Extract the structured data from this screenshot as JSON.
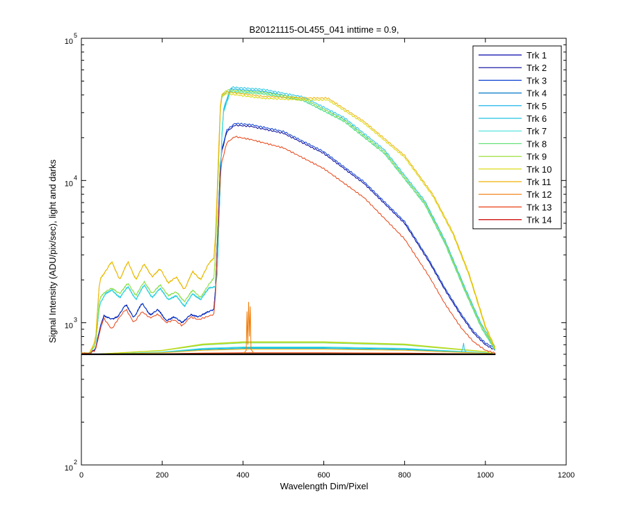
{
  "chart_data": {
    "type": "line",
    "title": "B20121115-OL455_041 inttime = 0.9,",
    "xlabel": "Wavelength Dim/Pixel",
    "ylabel": "Signal Intensity (ADU/pix/sec), light and darks",
    "xlim": [
      0,
      1200
    ],
    "ylim": [
      100,
      100000
    ],
    "yscale": "log",
    "xticks": [
      0,
      200,
      400,
      600,
      800,
      1000,
      1200
    ],
    "xtick_labels": [
      "0",
      "200",
      "400",
      "600",
      "800",
      "1000",
      "1200"
    ],
    "ytick_labels": [
      {
        "value": 100,
        "base": "10",
        "exp": "2"
      },
      {
        "value": 1000,
        "base": "10",
        "exp": "3"
      },
      {
        "value": 10000,
        "base": "10",
        "exp": "4"
      },
      {
        "value": 100000,
        "base": "10",
        "exp": "5"
      }
    ],
    "grid": false,
    "legend_position": "top-right",
    "series": [
      {
        "name": "Trk 1",
        "color": "#0000aa",
        "group": "dark",
        "dark_level": 602
      },
      {
        "name": "Trk 2",
        "color": "#000099",
        "group": "B",
        "dark_level": 604
      },
      {
        "name": "Trk 3",
        "color": "#0a3fd0",
        "group": "B",
        "dark_level": 606
      },
      {
        "name": "Trk 4",
        "color": "#0077c8",
        "group": "dark",
        "dark_level": 605
      },
      {
        "name": "Trk 5",
        "color": "#00aee6",
        "group": "C",
        "dark_level": 660
      },
      {
        "name": "Trk 6",
        "color": "#22c4e2",
        "group": "C",
        "dark_level": 668
      },
      {
        "name": "Trk 7",
        "color": "#44e0dc",
        "group": "C",
        "dark_level": 675
      },
      {
        "name": "Trk 8",
        "color": "#66e07a",
        "group": "D",
        "dark_level": 720
      },
      {
        "name": "Trk 9",
        "color": "#a0e040",
        "group": "D",
        "dark_level": 735
      },
      {
        "name": "Trk 10",
        "color": "#d8d800",
        "group": "A",
        "dark_level": 728
      },
      {
        "name": "Trk 11",
        "color": "#f0b000",
        "group": "A",
        "dark_level": 650
      },
      {
        "name": "Trk 12",
        "color": "#f07800",
        "group": "dark",
        "dark_level": 612
      },
      {
        "name": "Trk 13",
        "color": "#e84010",
        "group": "E",
        "dark_level": 615
      },
      {
        "name": "Trk 14",
        "color": "#cc0000",
        "group": "dark",
        "dark_level": 603
      }
    ],
    "profiles": {
      "B": [
        [
          0,
          610
        ],
        [
          20,
          610
        ],
        [
          35,
          650
        ],
        [
          45,
          900
        ],
        [
          55,
          1120
        ],
        [
          75,
          1060
        ],
        [
          90,
          1100
        ],
        [
          110,
          1350
        ],
        [
          130,
          1080
        ],
        [
          150,
          1380
        ],
        [
          170,
          1130
        ],
        [
          190,
          1240
        ],
        [
          210,
          1030
        ],
        [
          230,
          1100
        ],
        [
          250,
          1000
        ],
        [
          270,
          1140
        ],
        [
          290,
          1100
        ],
        [
          310,
          1180
        ],
        [
          330,
          1250
        ],
        [
          345,
          15000
        ],
        [
          360,
          22000
        ],
        [
          380,
          24500
        ],
        [
          420,
          24000
        ],
        [
          500,
          21500
        ],
        [
          600,
          15500
        ],
        [
          700,
          9500
        ],
        [
          800,
          5000
        ],
        [
          860,
          2700
        ],
        [
          900,
          1700
        ],
        [
          940,
          1120
        ],
        [
          970,
          850
        ],
        [
          1000,
          700
        ],
        [
          1025,
          640
        ]
      ],
      "C": [
        [
          0,
          610
        ],
        [
          20,
          610
        ],
        [
          35,
          700
        ],
        [
          45,
          1350
        ],
        [
          60,
          1600
        ],
        [
          75,
          1700
        ],
        [
          95,
          1500
        ],
        [
          115,
          1800
        ],
        [
          135,
          1450
        ],
        [
          155,
          1850
        ],
        [
          175,
          1500
        ],
        [
          195,
          1750
        ],
        [
          215,
          1450
        ],
        [
          235,
          1550
        ],
        [
          255,
          1300
        ],
        [
          275,
          1600
        ],
        [
          295,
          1450
        ],
        [
          315,
          1750
        ],
        [
          335,
          1800
        ],
        [
          350,
          30000
        ],
        [
          370,
          44000
        ],
        [
          450,
          42500
        ],
        [
          550,
          37500
        ],
        [
          650,
          27000
        ],
        [
          750,
          16000
        ],
        [
          850,
          7000
        ],
        [
          900,
          3700
        ],
        [
          950,
          1700
        ],
        [
          990,
          950
        ],
        [
          1025,
          650
        ]
      ],
      "D": [
        [
          0,
          610
        ],
        [
          20,
          610
        ],
        [
          35,
          700
        ],
        [
          45,
          1500
        ],
        [
          60,
          1650
        ],
        [
          75,
          1750
        ],
        [
          95,
          1600
        ],
        [
          115,
          1900
        ],
        [
          135,
          1550
        ],
        [
          155,
          1950
        ],
        [
          175,
          1600
        ],
        [
          195,
          1850
        ],
        [
          215,
          1550
        ],
        [
          235,
          1650
        ],
        [
          255,
          1400
        ],
        [
          275,
          1700
        ],
        [
          295,
          1500
        ],
        [
          315,
          1850
        ],
        [
          330,
          2100
        ],
        [
          345,
          38000
        ],
        [
          360,
          42000
        ],
        [
          450,
          40500
        ],
        [
          550,
          36500
        ],
        [
          650,
          26000
        ],
        [
          750,
          15500
        ],
        [
          850,
          6800
        ],
        [
          900,
          3600
        ],
        [
          950,
          1650
        ],
        [
          990,
          920
        ],
        [
          1025,
          640
        ]
      ],
      "A": [
        [
          0,
          610
        ],
        [
          20,
          610
        ],
        [
          35,
          750
        ],
        [
          45,
          2000
        ],
        [
          60,
          2300
        ],
        [
          75,
          2700
        ],
        [
          95,
          2000
        ],
        [
          115,
          2700
        ],
        [
          135,
          2000
        ],
        [
          155,
          2600
        ],
        [
          175,
          2100
        ],
        [
          195,
          2400
        ],
        [
          215,
          1900
        ],
        [
          235,
          2100
        ],
        [
          255,
          1700
        ],
        [
          275,
          2300
        ],
        [
          295,
          2000
        ],
        [
          315,
          2600
        ],
        [
          330,
          2900
        ],
        [
          345,
          40000
        ],
        [
          360,
          42000
        ],
        [
          450,
          39000
        ],
        [
          550,
          38000
        ],
        [
          610,
          38000
        ],
        [
          700,
          26000
        ],
        [
          800,
          15000
        ],
        [
          870,
          8000
        ],
        [
          920,
          4300
        ],
        [
          960,
          2200
        ],
        [
          1000,
          950
        ],
        [
          1025,
          660
        ]
      ],
      "E": [
        [
          0,
          610
        ],
        [
          20,
          610
        ],
        [
          35,
          640
        ],
        [
          45,
          850
        ],
        [
          55,
          1080
        ],
        [
          75,
          900
        ],
        [
          90,
          1050
        ],
        [
          110,
          1250
        ],
        [
          130,
          1000
        ],
        [
          150,
          1200
        ],
        [
          170,
          1080
        ],
        [
          190,
          1150
        ],
        [
          210,
          1000
        ],
        [
          230,
          1050
        ],
        [
          250,
          950
        ],
        [
          270,
          1100
        ],
        [
          290,
          1050
        ],
        [
          310,
          1100
        ],
        [
          330,
          1150
        ],
        [
          345,
          13000
        ],
        [
          360,
          19000
        ],
        [
          380,
          21000
        ],
        [
          420,
          20000
        ],
        [
          500,
          17500
        ],
        [
          600,
          12500
        ],
        [
          700,
          7800
        ],
        [
          800,
          4000
        ],
        [
          860,
          2200
        ],
        [
          900,
          1400
        ],
        [
          940,
          950
        ],
        [
          970,
          760
        ],
        [
          1000,
          660
        ],
        [
          1025,
          630
        ]
      ],
      "dark": [
        [
          0,
          600
        ],
        [
          1025,
          600
        ]
      ]
    },
    "spike": {
      "series": "Trk 12",
      "points": [
        [
          400,
          600
        ],
        [
          408,
          640
        ],
        [
          410,
          1200
        ],
        [
          412,
          700
        ],
        [
          414,
          1400
        ],
        [
          416,
          800
        ],
        [
          418,
          1300
        ],
        [
          420,
          650
        ],
        [
          425,
          620
        ]
      ]
    },
    "spike_b": {
      "series": "Trk 6",
      "points": [
        [
          940,
          620
        ],
        [
          944,
          660
        ],
        [
          946,
          720
        ],
        [
          948,
          650
        ],
        [
          952,
          620
        ]
      ]
    }
  }
}
